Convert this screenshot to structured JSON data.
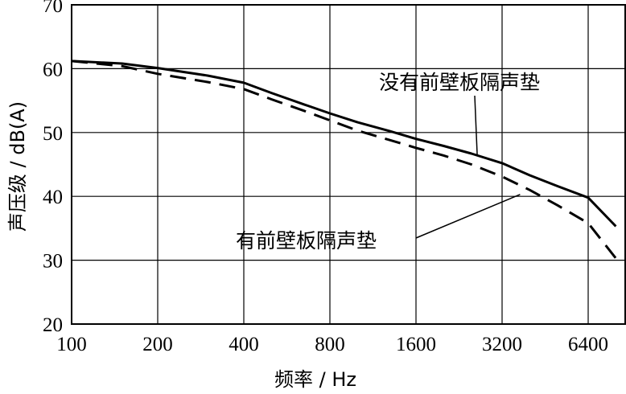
{
  "chart_data": {
    "type": "line",
    "xlabel": "频率 / Hz",
    "ylabel": "声压级 / dB(A)",
    "x_scale": "log2",
    "xlim": [
      100,
      8000
    ],
    "ylim": [
      20,
      70
    ],
    "x_ticks": [
      "100",
      "200",
      "400",
      "800",
      "1600",
      "3200",
      "6400"
    ],
    "x_tick_values": [
      100,
      200,
      400,
      800,
      1600,
      3200,
      6400
    ],
    "y_ticks": [
      "20",
      "30",
      "40",
      "50",
      "60",
      "70"
    ],
    "y_tick_values": [
      20,
      30,
      40,
      50,
      60,
      70
    ],
    "grid": true,
    "series": [
      {
        "name": "没有前壁板隔声垫",
        "style": "solid",
        "x": [
          100,
          150,
          200,
          300,
          400,
          500,
          650,
          800,
          1000,
          1300,
          1600,
          2000,
          2500,
          3200,
          4000,
          5000,
          6400,
          8000
        ],
        "values": [
          61.2,
          60.8,
          60.1,
          58.9,
          57.8,
          56.2,
          54.4,
          53.0,
          51.6,
          50.2,
          49.0,
          47.9,
          46.7,
          45.2,
          43.3,
          41.6,
          39.8,
          35.3
        ]
      },
      {
        "name": "有前壁板隔声垫",
        "style": "dashed",
        "x": [
          100,
          150,
          200,
          300,
          400,
          500,
          650,
          800,
          1000,
          1300,
          1600,
          2000,
          2500,
          3200,
          4000,
          5000,
          6400,
          8000
        ],
        "values": [
          61.2,
          60.4,
          59.2,
          57.9,
          56.8,
          55.2,
          53.4,
          51.9,
          50.3,
          48.8,
          47.6,
          46.4,
          45.0,
          43.1,
          41.0,
          38.6,
          35.8,
          30.3
        ]
      }
    ],
    "annotations": [
      {
        "text": "没有前壁板隔声垫",
        "target_series": 0,
        "target_x": 2620,
        "target_y": 46.4
      },
      {
        "text": "有前壁板隔声垫",
        "target_series": 1,
        "target_x": 3700,
        "target_y": 40.3
      }
    ]
  }
}
